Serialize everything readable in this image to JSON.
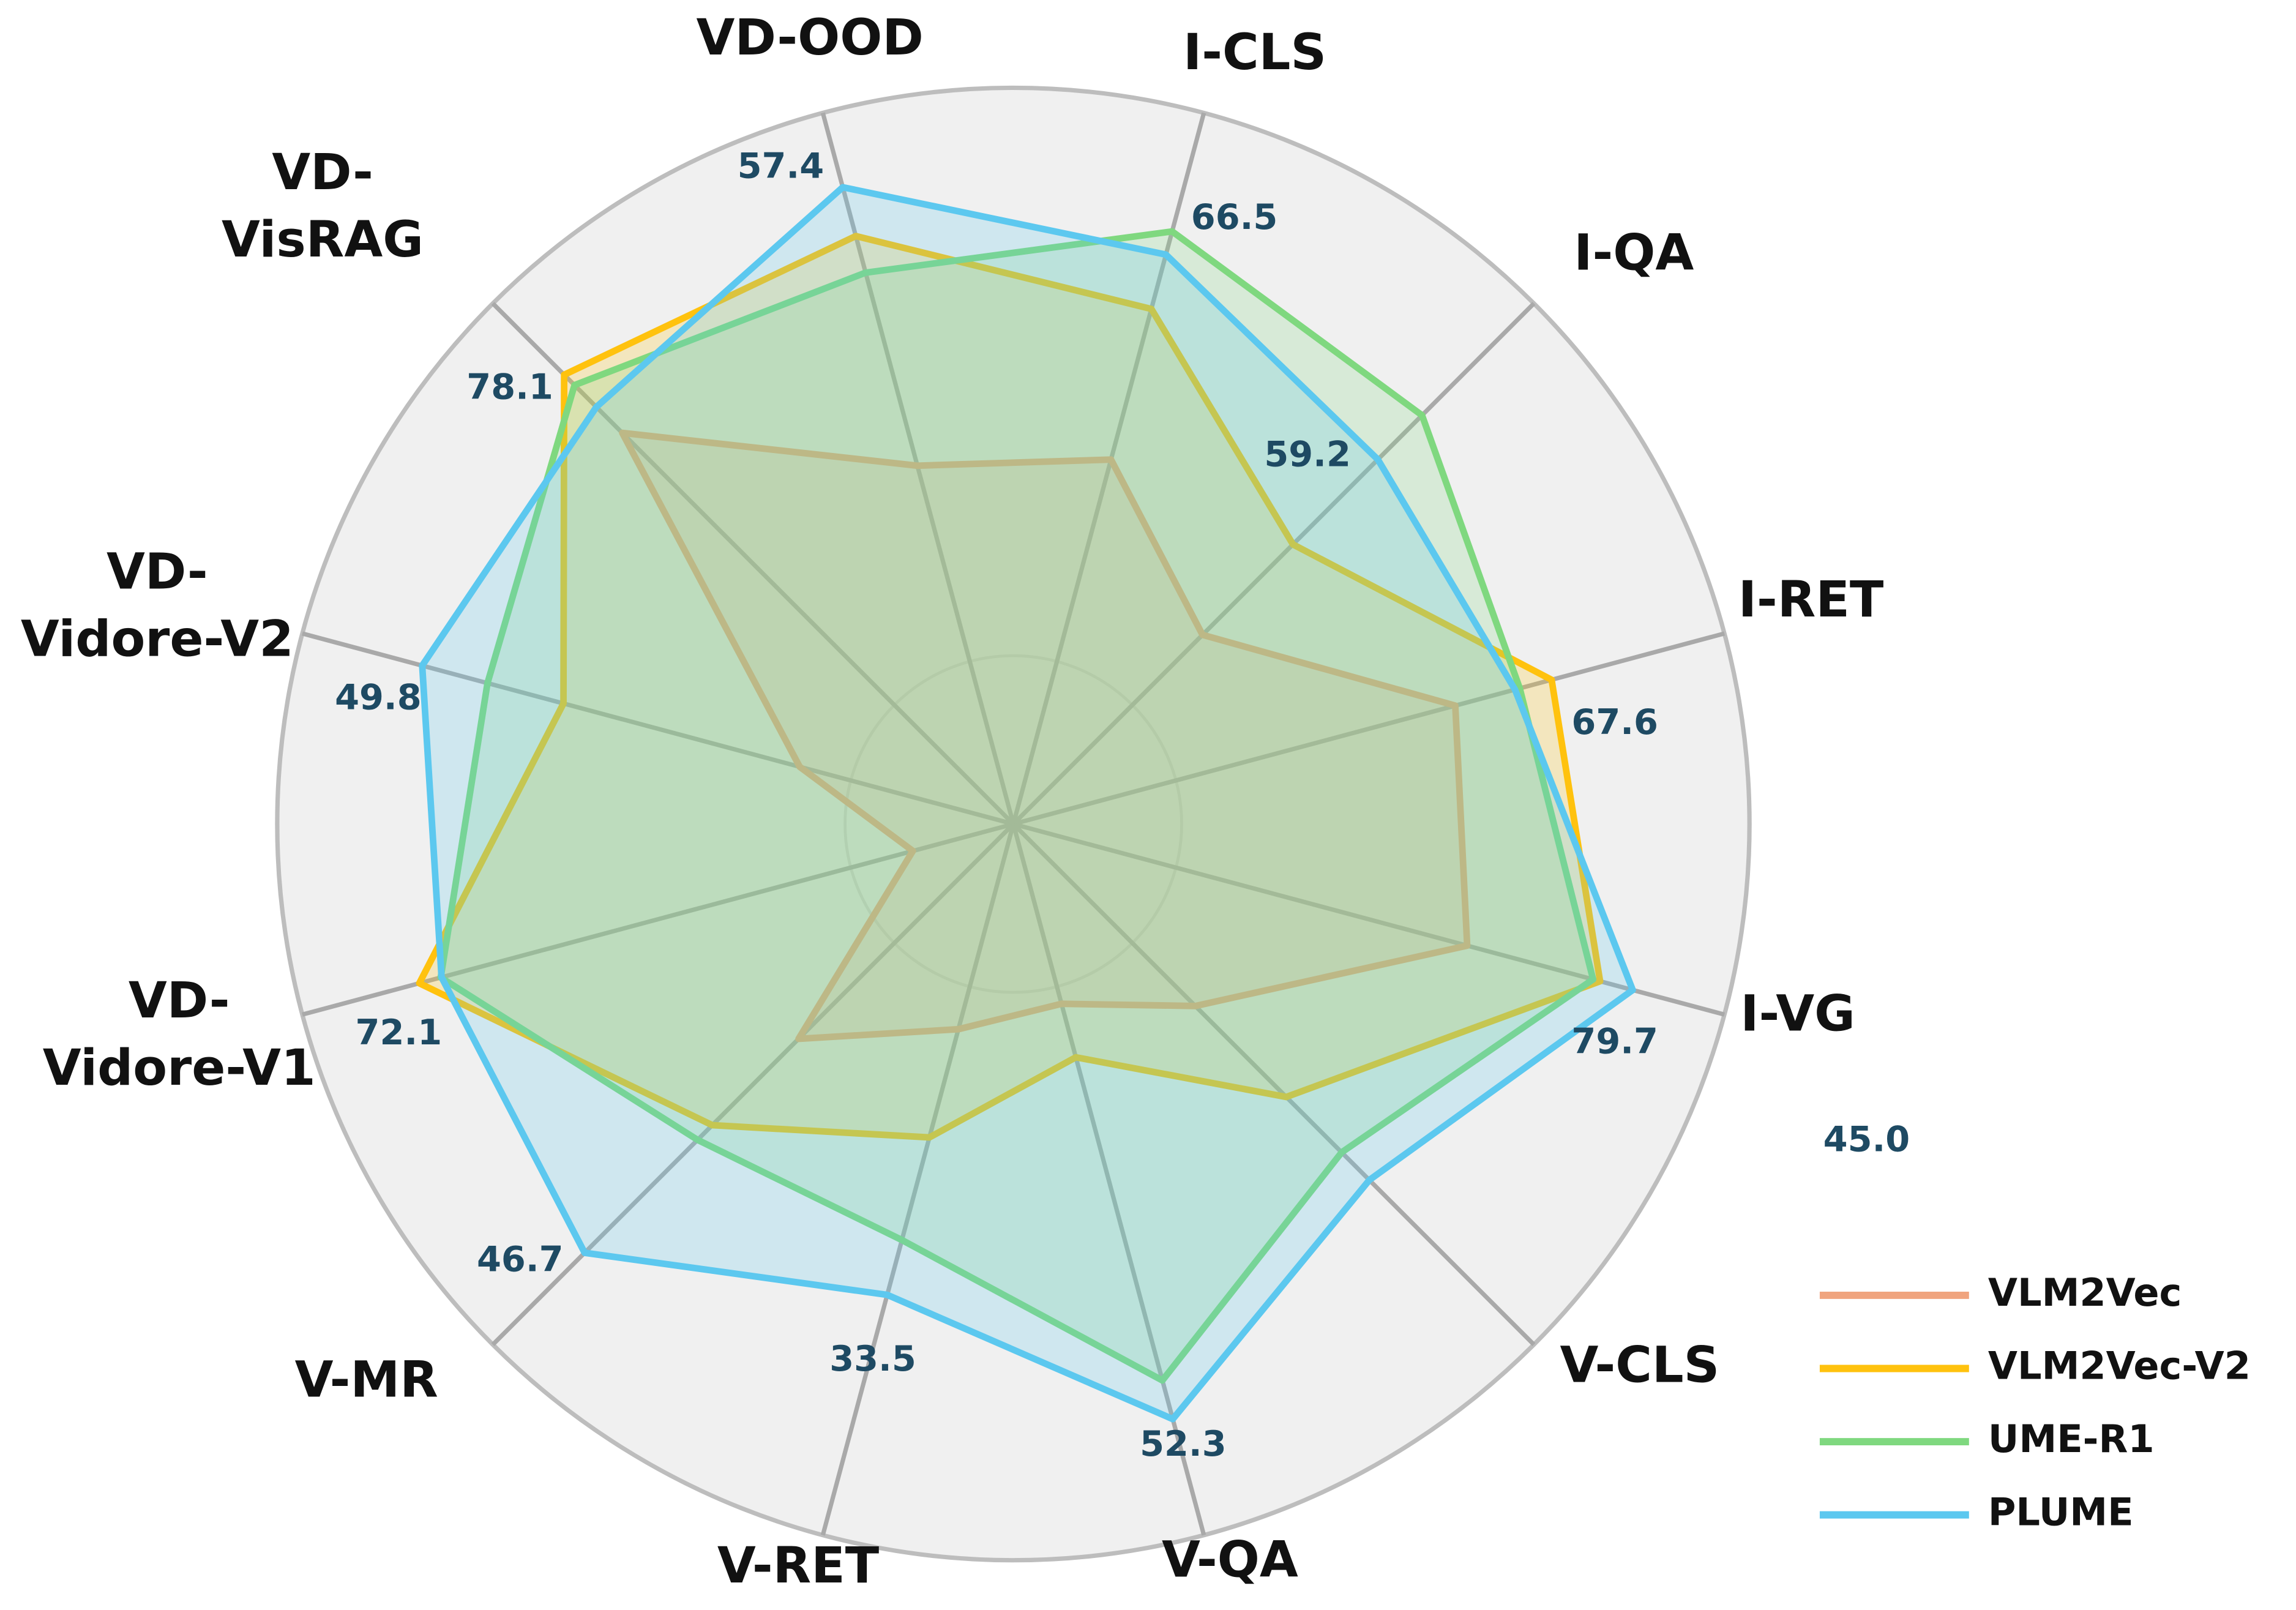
{
  "chart_data": {
    "type": "radar",
    "categories": [
      "I-CLS",
      "I-QA",
      "I-RET",
      "I-VG",
      "V-CLS",
      "V-QA",
      "V-RET",
      "V-MR",
      "VD-\nVidore-V1",
      "VD-\nVidore-V2",
      "VD-\nVisRAG",
      "VD-OOD"
    ],
    "rmax": [
      79.8,
      75.4,
      89.3,
      91.5,
      65.8,
      62.5,
      50.6,
      56.7,
      86.3,
      59.9,
      90.5,
      64.1
    ],
    "series": [
      {
        "name": "VLM2Vec",
        "color": "#f0a47e",
        "values": [
          40.9,
          27.4,
          55.5,
          58.4,
          23.0,
          15.8,
          14.6,
          23.4,
          12.2,
          18.0,
          68.0,
          32.3
        ],
        "value_labels": [
          null,
          null,
          null,
          null,
          null,
          null,
          null,
          null,
          null,
          null,
          null,
          null
        ]
      },
      {
        "name": "VLM2Vec-V2",
        "color": "#ffc20e",
        "values": [
          57.8,
          40.5,
          67.6,
          75.5,
          34.5,
          20.5,
          22.3,
          32.8,
          72.1,
          37.9,
          78.1,
          53.0
        ],
        "value_labels": [
          null,
          null,
          "67.6",
          null,
          null,
          null,
          null,
          null,
          "72.1",
          null,
          "78.1",
          null
        ]
      },
      {
        "name": "UME-R1",
        "color": "#7fd87f",
        "values": [
          66.5,
          59.2,
          63.6,
          74.6,
          41.5,
          48.9,
          29.6,
          34.4,
          69.5,
          44.3,
          76.3,
          49.7
        ],
        "value_labels": [
          "66.5",
          "59.2",
          null,
          null,
          null,
          null,
          null,
          null,
          null,
          null,
          null,
          null
        ]
      },
      {
        "name": "PLUME",
        "color": "#5cc8ef",
        "values": [
          63.9,
          52.8,
          63.0,
          79.7,
          45.0,
          52.3,
          33.5,
          46.7,
          69.4,
          49.8,
          72.5,
          57.4
        ],
        "value_labels": [
          null,
          null,
          null,
          "79.7",
          "45.0",
          "52.3",
          "33.5",
          "46.7",
          null,
          "49.8",
          null,
          "57.4"
        ]
      }
    ]
  }
}
